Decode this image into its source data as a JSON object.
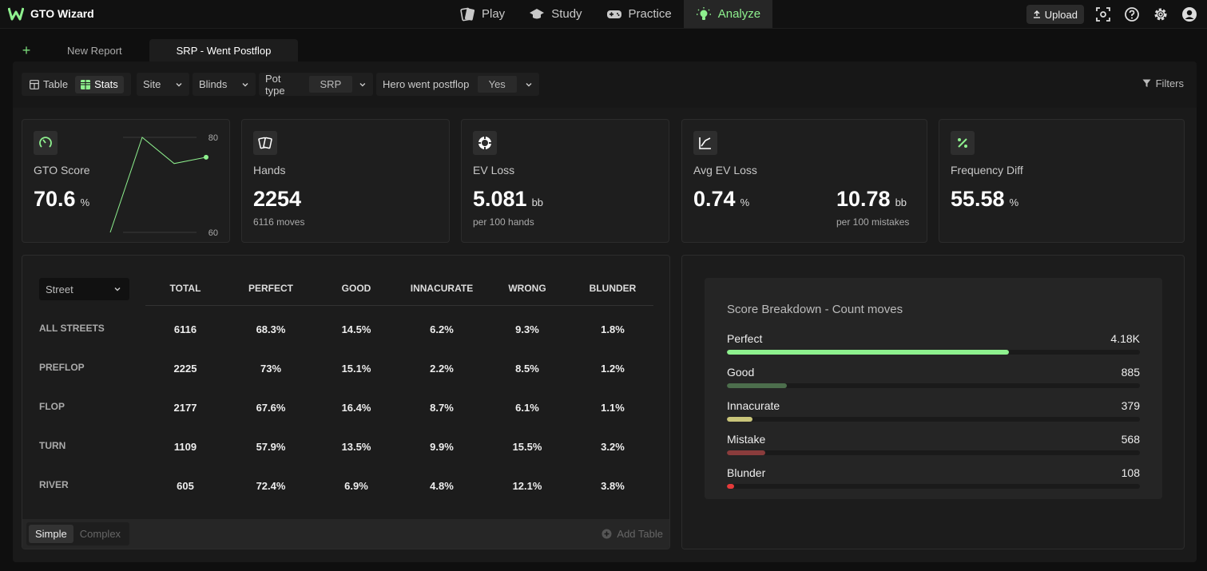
{
  "app": {
    "name": "GTO Wizard"
  },
  "nav": [
    {
      "label": "Play",
      "icon": "cards-icon"
    },
    {
      "label": "Study",
      "icon": "graduation-cap-icon"
    },
    {
      "label": "Practice",
      "icon": "gamepad-icon"
    },
    {
      "label": "Analyze",
      "icon": "lightbulb-icon",
      "active": true
    }
  ],
  "topright": {
    "upload_label": "Upload"
  },
  "tabs": {
    "new_report": "New Report",
    "active": "SRP - Went Postflop"
  },
  "filterbar": {
    "view_table": "Table",
    "view_stats": "Stats",
    "site_label": "Site",
    "blinds_label": "Blinds",
    "pot_type_label": "Pot type",
    "pot_type_value": "SRP",
    "hero_postflop_label": "Hero went postflop",
    "hero_postflop_value": "Yes",
    "filters_label": "Filters"
  },
  "cards": {
    "gto_score": {
      "label": "GTO Score",
      "value": "70.6",
      "unit": "%",
      "spark_max": "80",
      "spark_min": "60"
    },
    "hands": {
      "label": "Hands",
      "value": "2254",
      "sub": "6116 moves"
    },
    "ev_loss": {
      "label": "EV Loss",
      "value": "5.081",
      "unit": "bb",
      "sub": "per 100 hands"
    },
    "avg_ev_loss": {
      "label": "Avg EV Loss",
      "value": "0.74",
      "unit": "%",
      "value2": "10.78",
      "unit2": "bb",
      "sub2": "per 100 mistakes"
    },
    "freq_diff": {
      "label": "Frequency Diff",
      "value": "55.58",
      "unit": "%"
    }
  },
  "chart_data": {
    "type": "line",
    "x": [
      1,
      2,
      3,
      4
    ],
    "values": [
      57.5,
      80,
      73.8,
      75.3
    ],
    "ylim": [
      57.5,
      80
    ],
    "yticks": [
      "80",
      "60"
    ]
  },
  "street_table": {
    "dropdown": "Street",
    "headers": [
      "TOTAL",
      "PERFECT",
      "GOOD",
      "INNACURATE",
      "WRONG",
      "BLUNDER"
    ],
    "rows": [
      {
        "label": "ALL STREETS",
        "cells": [
          "6116",
          "68.3%",
          "14.5%",
          "6.2%",
          "9.3%",
          "1.8%"
        ]
      },
      {
        "label": "PREFLOP",
        "cells": [
          "2225",
          "73%",
          "15.1%",
          "2.2%",
          "8.5%",
          "1.2%"
        ]
      },
      {
        "label": "FLOP",
        "cells": [
          "2177",
          "67.6%",
          "16.4%",
          "8.7%",
          "6.1%",
          "1.1%"
        ]
      },
      {
        "label": "TURN",
        "cells": [
          "1109",
          "57.9%",
          "13.5%",
          "9.9%",
          "15.5%",
          "3.2%"
        ]
      },
      {
        "label": "RIVER",
        "cells": [
          "605",
          "72.4%",
          "6.9%",
          "4.8%",
          "12.1%",
          "3.8%"
        ]
      }
    ],
    "mode_simple": "Simple",
    "mode_complex": "Complex",
    "add_table": "Add Table"
  },
  "score_breakdown": {
    "title": "Score Breakdown - Count moves",
    "items": [
      {
        "name": "Perfect",
        "value": "4.18K",
        "fraction": 0.683,
        "color": "#8ef08e"
      },
      {
        "name": "Good",
        "value": "885",
        "fraction": 0.145,
        "color": "#4c6e4c"
      },
      {
        "name": "Innacurate",
        "value": "379",
        "fraction": 0.062,
        "color": "#c9c57a"
      },
      {
        "name": "Mistake",
        "value": "568",
        "fraction": 0.093,
        "color": "#8a3c3c"
      },
      {
        "name": "Blunder",
        "value": "108",
        "fraction": 0.018,
        "color": "#e53a3a"
      }
    ]
  }
}
